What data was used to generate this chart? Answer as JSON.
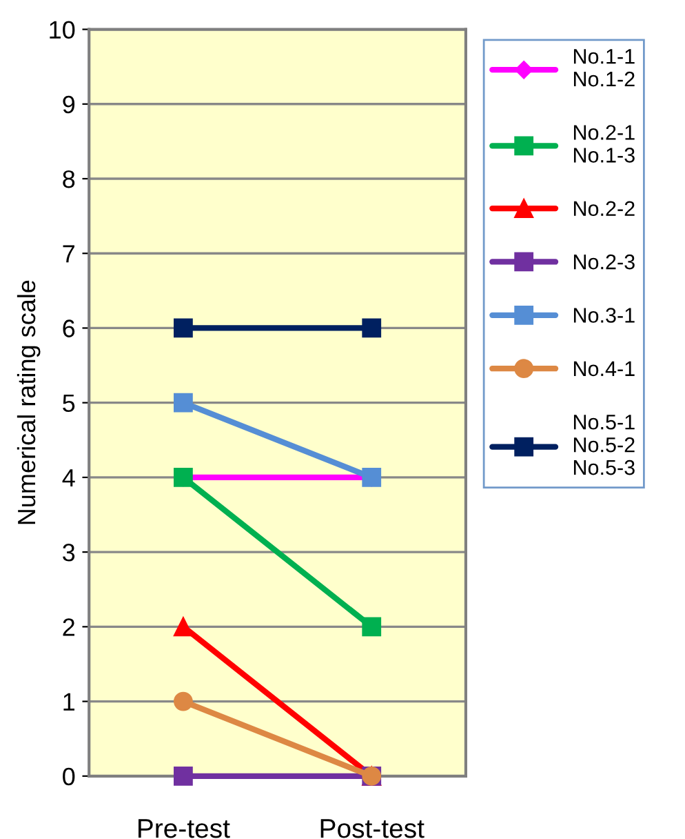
{
  "chart_data": {
    "type": "line",
    "ylabel": "Numerical rating scale",
    "categories": [
      "Pre-test",
      "Post-test"
    ],
    "series": [
      {
        "name": "No.1-1\nNo.1-2",
        "color": "#ff00ff",
        "marker": "diamond",
        "values": [
          4,
          4
        ]
      },
      {
        "name": "No.2-1\nNo.1-3",
        "color": "#00b050",
        "marker": "square",
        "values": [
          4,
          2
        ]
      },
      {
        "name": "No.2-2",
        "color": "#ff0000",
        "marker": "triangle",
        "values": [
          2,
          0
        ]
      },
      {
        "name": "No.2-3",
        "color": "#7030a0",
        "marker": "square",
        "values": [
          0,
          0
        ]
      },
      {
        "name": "No.3-1",
        "color": "#558ed5",
        "marker": "square",
        "values": [
          5,
          4
        ]
      },
      {
        "name": "No.4-1",
        "color": "#dd8844",
        "marker": "circle",
        "values": [
          1,
          0
        ]
      },
      {
        "name": "No.5-1\nNo.5-2\nNo.5-3",
        "color": "#002060",
        "marker": "square",
        "values": [
          6,
          6
        ]
      }
    ],
    "ylim": [
      0,
      10
    ],
    "yticks": [
      0,
      1,
      2,
      3,
      4,
      5,
      6,
      7,
      8,
      9,
      10
    ],
    "grid": "y",
    "legend": "right",
    "line_style": "solid"
  }
}
